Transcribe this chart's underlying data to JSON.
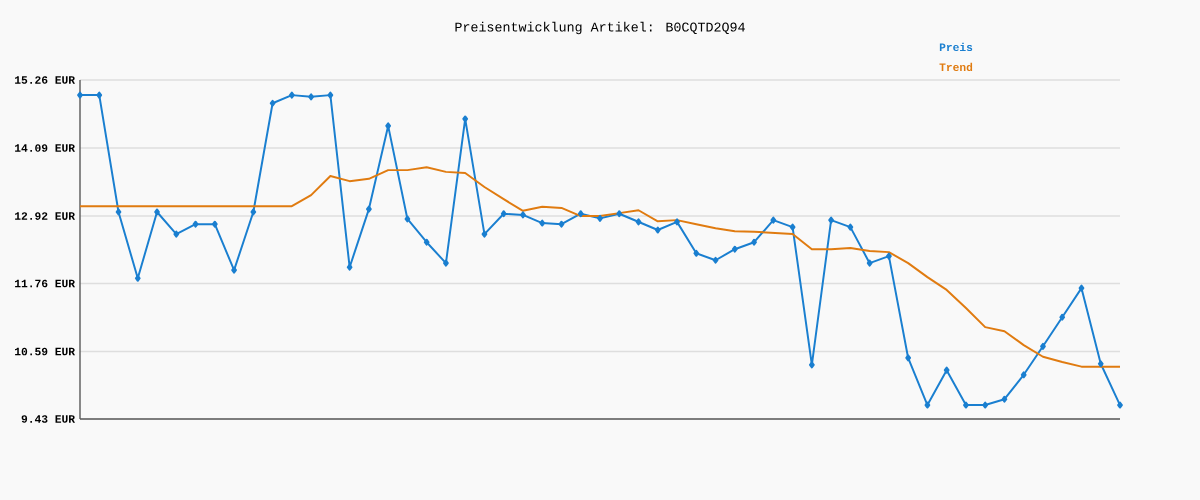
{
  "chart_data": {
    "type": "line",
    "title": "Preisentwicklung Artikel: B0CQTD2Q94",
    "categories": [
      null,
      null,
      null,
      null,
      null,
      null,
      null,
      null,
      null,
      null,
      null,
      null,
      null,
      null,
      null,
      null,
      null,
      null,
      null,
      null,
      null,
      null,
      null,
      null,
      null,
      null,
      null,
      null,
      null,
      null,
      null,
      null,
      null,
      null,
      null,
      null,
      null,
      null,
      null,
      null,
      null,
      null,
      null,
      null,
      null,
      null,
      null,
      null,
      null,
      null,
      null,
      null,
      null,
      null,
      null
    ],
    "series": [
      {
        "name": "Preis",
        "color": "#1a7fd0",
        "marker": "diamond",
        "values": [
          15.0,
          15.0,
          12.99,
          11.85,
          12.99,
          12.61,
          12.78,
          12.78,
          11.99,
          12.99,
          14.86,
          15.0,
          14.97,
          15.0,
          12.04,
          13.04,
          14.47,
          12.87,
          12.47,
          12.11,
          14.59,
          12.61,
          12.96,
          12.94,
          12.8,
          12.78,
          12.96,
          12.88,
          12.96,
          12.82,
          12.68,
          12.82,
          12.28,
          12.16,
          12.35,
          12.47,
          12.85,
          12.73,
          10.36,
          12.85,
          12.73,
          12.11,
          12.23,
          10.48,
          9.67,
          10.27,
          9.67,
          9.67,
          9.77,
          10.19,
          10.68,
          11.18,
          11.68,
          10.38,
          9.67
        ]
      },
      {
        "name": "Trend",
        "color": "#e07b10",
        "marker": "none",
        "values": [
          13.09,
          13.09,
          13.09,
          13.09,
          13.09,
          13.09,
          13.09,
          13.09,
          13.09,
          13.09,
          13.09,
          13.09,
          13.28,
          13.61,
          13.52,
          13.56,
          13.71,
          13.71,
          13.76,
          13.68,
          13.66,
          13.42,
          13.21,
          13.01,
          13.08,
          13.06,
          12.92,
          12.92,
          12.97,
          13.02,
          12.83,
          12.85,
          12.78,
          12.71,
          12.66,
          12.65,
          12.63,
          12.61,
          12.35,
          12.35,
          12.37,
          12.32,
          12.3,
          12.11,
          11.87,
          11.65,
          11.34,
          11.01,
          10.94,
          10.7,
          10.5,
          10.41,
          10.33,
          10.33,
          10.33
        ]
      }
    ],
    "ylim": [
      9.43,
      15.26
    ],
    "yticks": [
      {
        "value": 15.26,
        "label": "15.26 EUR"
      },
      {
        "value": 14.09,
        "label": "14.09 EUR"
      },
      {
        "value": 12.92,
        "label": "12.92 EUR"
      },
      {
        "value": 11.76,
        "label": "11.76 EUR"
      },
      {
        "value": 10.59,
        "label": "10.59 EUR"
      },
      {
        "value": 9.43,
        "label": "9.43 EUR"
      }
    ],
    "grid": "y",
    "legend": "top right",
    "tick_labels": "y"
  }
}
